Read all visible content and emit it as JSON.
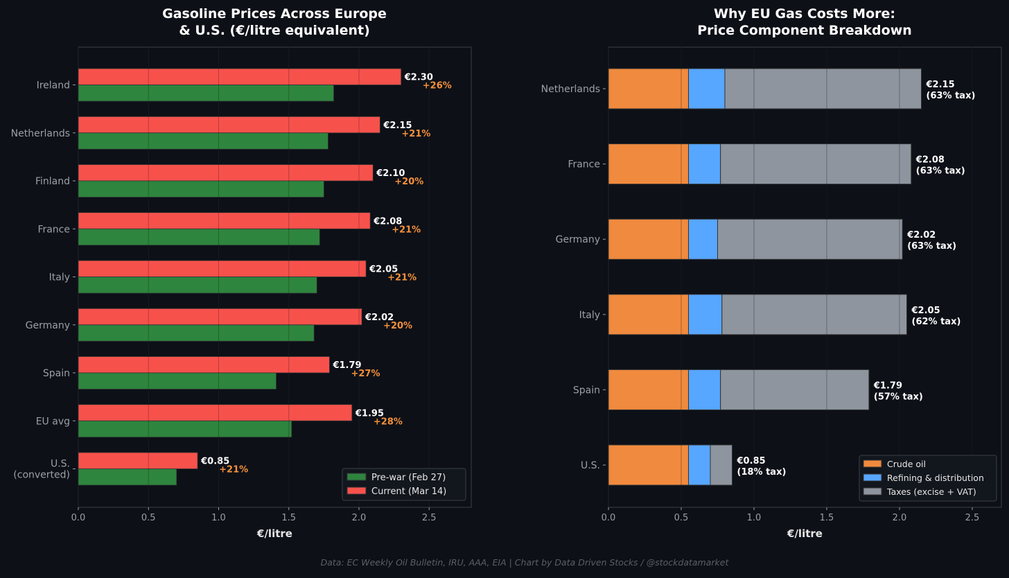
{
  "colors": {
    "background": "#0d1017",
    "prewar": "#2e853e",
    "current": "#f7514c",
    "crude": "#f08a3e",
    "refining": "#57a6ff",
    "taxes": "#8e959f",
    "pct": "#f5913a",
    "text": "#ffffff",
    "tick": "#9aa0a6",
    "footer": "#5a5f68"
  },
  "footer": "Data: EC Weekly Oil Bulletin, IRU, AAA, EIA  |  Chart by Data Driven Stocks / @stockdatamarket",
  "chart_data": [
    {
      "type": "bar",
      "orientation": "horizontal",
      "title": [
        "Gasoline Prices Across Europe",
        "& U.S. (€/litre equivalent)"
      ],
      "xlabel": "€/litre",
      "xlim": [
        0,
        2.8
      ],
      "xticks": [
        "0.0",
        "0.5",
        "1.0",
        "1.5",
        "2.0",
        "2.5"
      ],
      "categories": [
        "Ireland",
        "Netherlands",
        "Finland",
        "France",
        "Italy",
        "Germany",
        "Spain",
        "EU avg",
        "U.S.\n(converted)"
      ],
      "series": [
        {
          "name": "Current (Mar 14)",
          "values": [
            2.3,
            2.15,
            2.1,
            2.08,
            2.05,
            2.02,
            1.79,
            1.95,
            0.85
          ]
        },
        {
          "name": "Pre-war (Feb 27)",
          "values": [
            1.82,
            1.78,
            1.75,
            1.72,
            1.7,
            1.68,
            1.41,
            1.52,
            0.7
          ]
        }
      ],
      "value_labels": [
        "€2.30",
        "€2.15",
        "€2.10",
        "€2.08",
        "€2.05",
        "€2.02",
        "€1.79",
        "€1.95",
        "€0.85"
      ],
      "change_labels": [
        "+26%",
        "+21%",
        "+20%",
        "+21%",
        "+21%",
        "+20%",
        "+27%",
        "+28%",
        "+21%"
      ],
      "legend": [
        "Pre-war (Feb 27)",
        "Current (Mar 14)"
      ],
      "legend_position": "bottom-right"
    },
    {
      "type": "bar",
      "orientation": "horizontal",
      "stacked": true,
      "title": [
        "Why EU Gas Costs More:",
        "Price Component Breakdown"
      ],
      "xlabel": "€/litre",
      "xlim": [
        0,
        2.7
      ],
      "xticks": [
        "0.0",
        "0.5",
        "1.0",
        "1.5",
        "2.0",
        "2.5"
      ],
      "categories": [
        "Netherlands",
        "France",
        "Germany",
        "Italy",
        "Spain",
        "U.S."
      ],
      "series": [
        {
          "name": "Crude oil",
          "values": [
            0.55,
            0.55,
            0.55,
            0.55,
            0.55,
            0.55
          ]
        },
        {
          "name": "Refining & distribution",
          "values": [
            0.25,
            0.22,
            0.2,
            0.23,
            0.22,
            0.15
          ]
        },
        {
          "name": "Taxes (excise + VAT)",
          "values": [
            1.35,
            1.31,
            1.27,
            1.27,
            1.02,
            0.15
          ]
        }
      ],
      "value_labels": [
        "€2.15",
        "€2.08",
        "€2.02",
        "€2.05",
        "€1.79",
        "€0.85"
      ],
      "tax_labels": [
        "(63% tax)",
        "(63% tax)",
        "(63% tax)",
        "(62% tax)",
        "(57% tax)",
        "(18% tax)"
      ],
      "legend": [
        "Crude oil",
        "Refining & distribution",
        "Taxes (excise + VAT)"
      ],
      "legend_position": "bottom-right"
    }
  ]
}
